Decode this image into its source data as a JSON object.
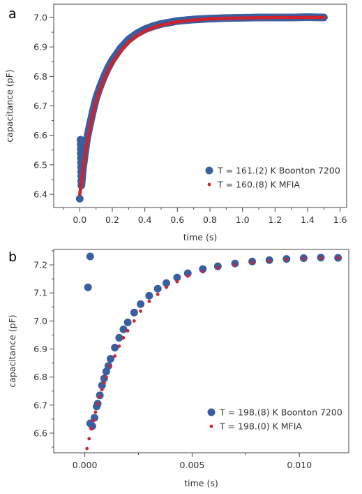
{
  "colors": {
    "blue": "#3a5fa0",
    "red": "#d0232e",
    "axis": "#444444",
    "text": "#333333"
  },
  "chart_data": [
    {
      "type": "scatter",
      "panel_label": "a",
      "xlabel": "time (s)",
      "ylabel": "capacitance (pF)",
      "xlim": [
        -0.16,
        1.64
      ],
      "ylim": [
        6.355,
        7.045
      ],
      "xticks": [
        0.0,
        0.2,
        0.4,
        0.6,
        0.8,
        1.0,
        1.2,
        1.4,
        1.6
      ],
      "xtick_labels": [
        "0.0",
        "0.2",
        "0.4",
        "0.6",
        "0.8",
        "1.0",
        "1.2",
        "1.4",
        "1.6"
      ],
      "xminor": [
        -0.1,
        0.1,
        0.3,
        0.5,
        0.7,
        0.9,
        1.1,
        1.3,
        1.5
      ],
      "yticks": [
        6.4,
        6.5,
        6.6,
        6.7,
        6.8,
        6.9,
        7.0
      ],
      "ytick_labels": [
        "6.4",
        "6.5",
        "6.6",
        "6.7",
        "6.8",
        "6.9",
        "7.0"
      ],
      "yminor": [
        6.45,
        6.55,
        6.65,
        6.75,
        6.85,
        6.95
      ],
      "legend": {
        "position": "lower-right"
      },
      "series": [
        {
          "name": "T = 161.(2) K Boonton 7200",
          "color": "blue",
          "marker": "large-circle",
          "x": [
            0.0,
            0.005,
            0.01,
            0.02,
            0.03,
            0.045,
            0.06,
            0.08,
            0.1,
            0.125,
            0.15,
            0.175,
            0.2,
            0.25,
            0.3,
            0.35,
            0.4,
            0.45,
            0.5,
            0.6,
            0.7,
            0.8,
            0.9,
            1.0,
            1.1,
            1.2,
            1.3,
            1.4,
            1.5
          ],
          "y": [
            6.385,
            6.585,
            6.43,
            6.49,
            6.53,
            6.59,
            6.63,
            6.68,
            6.725,
            6.765,
            6.8,
            6.83,
            6.855,
            6.895,
            6.925,
            6.945,
            6.96,
            6.97,
            6.978,
            6.988,
            6.993,
            6.996,
            6.998,
            6.999,
            7.0,
            7.0,
            7.0,
            7.001,
            7.0
          ]
        },
        {
          "name": "T = 160.(8) K MFIA",
          "color": "red",
          "marker": "small-circle",
          "x": [
            0.0,
            0.01,
            0.02,
            0.03,
            0.045,
            0.06,
            0.08,
            0.1,
            0.125,
            0.15,
            0.175,
            0.2,
            0.25,
            0.3,
            0.35,
            0.4,
            0.45,
            0.5,
            0.6,
            0.7,
            0.8,
            0.9,
            1.0,
            1.1,
            1.2,
            1.3,
            1.4,
            1.5
          ],
          "y": [
            6.4,
            6.44,
            6.48,
            6.52,
            6.575,
            6.62,
            6.67,
            6.715,
            6.755,
            6.79,
            6.82,
            6.845,
            6.885,
            6.915,
            6.937,
            6.953,
            6.965,
            6.974,
            6.985,
            6.991,
            6.995,
            6.997,
            6.998,
            6.999,
            7.0,
            7.0,
            7.0,
            7.0
          ]
        }
      ]
    },
    {
      "type": "scatter",
      "panel_label": "b",
      "xlabel": "time (s)",
      "ylabel": "capacitance (pF)",
      "xlim": [
        -0.00145,
        0.0123
      ],
      "ylim": [
        6.53,
        7.255
      ],
      "xticks": [
        0.0,
        0.005,
        0.01
      ],
      "xtick_labels": [
        "0.000",
        "0.005",
        "0.010"
      ],
      "xminor": [
        0.0025,
        0.0075,
        0.0125
      ],
      "yticks": [
        6.6,
        6.7,
        6.8,
        6.9,
        7.0,
        7.1,
        7.2
      ],
      "ytick_labels": [
        "6.6",
        "6.7",
        "6.8",
        "6.9",
        "7.0",
        "7.1",
        "7.2"
      ],
      "yminor": [
        6.55,
        6.65,
        6.75,
        6.85,
        6.95,
        7.05,
        7.15,
        7.25
      ],
      "legend": {
        "position": "lower-right"
      },
      "series": [
        {
          "name": "T = 198.(8) K Boonton 7200",
          "color": "blue",
          "marker": "large-circle",
          "x": [
            0.00015,
            0.00025,
            0.00025,
            0.00035,
            0.00045,
            0.00055,
            0.0006,
            0.0007,
            0.0008,
            0.0009,
            0.001,
            0.0011,
            0.0012,
            0.0014,
            0.0016,
            0.0018,
            0.002,
            0.0023,
            0.0026,
            0.003,
            0.0034,
            0.0038,
            0.0043,
            0.0048,
            0.0055,
            0.0062,
            0.007,
            0.0078,
            0.0086,
            0.0094,
            0.0102,
            0.011,
            0.0118
          ],
          "y": [
            7.12,
            7.23,
            6.635,
            6.625,
            6.655,
            6.695,
            6.705,
            6.735,
            6.77,
            6.795,
            6.82,
            6.84,
            6.865,
            6.905,
            6.94,
            6.97,
            6.995,
            7.03,
            7.06,
            7.09,
            7.115,
            7.135,
            7.155,
            7.17,
            7.185,
            7.195,
            7.205,
            7.212,
            7.217,
            7.221,
            7.224,
            7.226,
            7.225
          ]
        },
        {
          "name": "T = 198.(0) K MFIA",
          "color": "red",
          "marker": "small-circle",
          "x": [
            0.0001,
            0.0002,
            0.0003,
            0.0004,
            0.0005,
            0.0006,
            0.0007,
            0.0008,
            0.0009,
            0.001,
            0.0012,
            0.0014,
            0.0016,
            0.0018,
            0.002,
            0.0023,
            0.0026,
            0.003,
            0.0034,
            0.0038,
            0.0043,
            0.0048,
            0.0055,
            0.0062,
            0.007,
            0.0078,
            0.0086,
            0.0094,
            0.0102,
            0.011,
            0.0118
          ],
          "y": [
            6.545,
            6.58,
            6.615,
            6.645,
            6.675,
            6.705,
            6.73,
            6.755,
            6.78,
            6.8,
            6.84,
            6.875,
            6.91,
            6.94,
            6.965,
            7.0,
            7.035,
            7.07,
            7.095,
            7.12,
            7.14,
            7.16,
            7.175,
            7.19,
            7.2,
            7.208,
            7.214,
            7.219,
            7.222,
            7.224,
            7.225
          ]
        }
      ]
    }
  ]
}
